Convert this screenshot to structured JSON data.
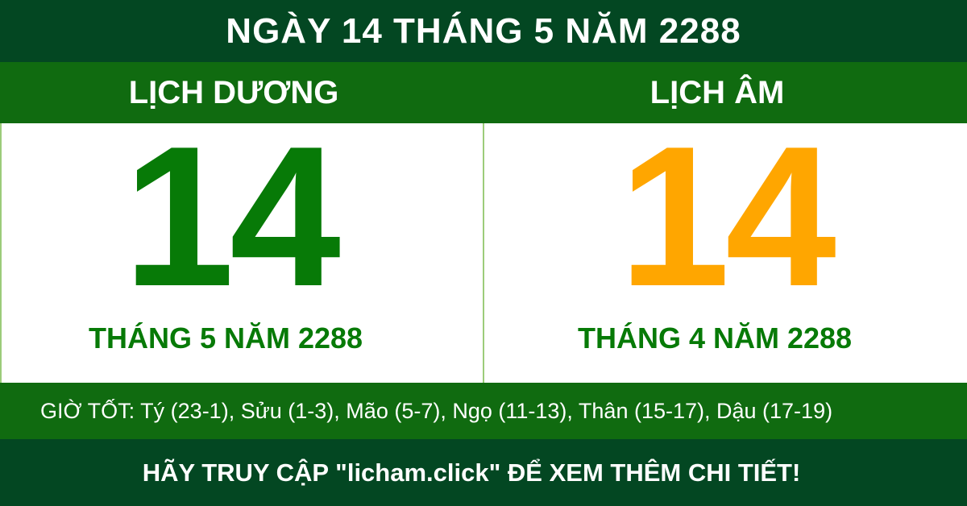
{
  "header": {
    "title": "NGÀY 14 THÁNG 5 NĂM 2288"
  },
  "solar": {
    "heading": "LỊCH DƯƠNG",
    "day": "14",
    "month_year": "THÁNG 5 NĂM 2288"
  },
  "lunar": {
    "heading": "LỊCH ÂM",
    "day": "14",
    "month_year": "THÁNG 4 NĂM 2288"
  },
  "good_hours": "GIỜ TỐT: Tý (23-1), Sửu (1-3), Mão (5-7), Ngọ (11-13), Thân (15-17), Dậu (17-19)",
  "footer": "HÃY TRUY CẬP \"licham.click\" ĐỂ XEM THÊM CHI TIẾT!",
  "colors": {
    "dark_green": "#034722",
    "green": "#106b10",
    "solar_day": "#077a07",
    "lunar_day": "#ffa600"
  }
}
